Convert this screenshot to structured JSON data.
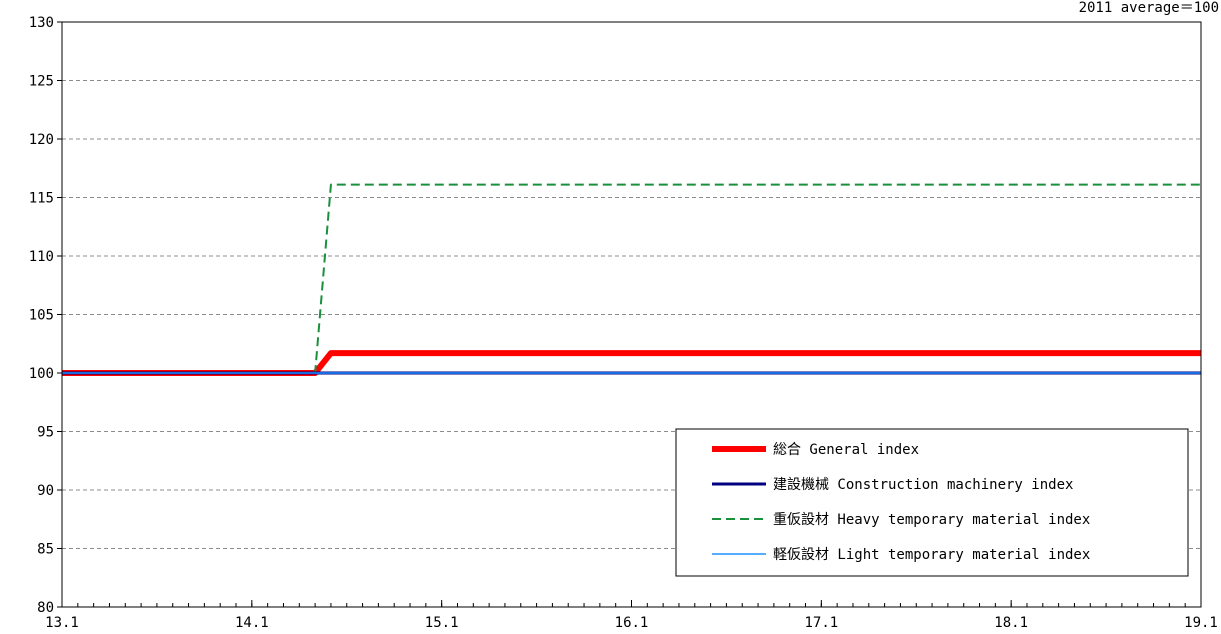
{
  "chart_data": {
    "type": "line",
    "title": "",
    "xlabel": "",
    "ylabel": "",
    "note": "2011 average＝100",
    "ylim": [
      80,
      130
    ],
    "yticks": [
      "80",
      "85",
      "90",
      "95",
      "100",
      "105",
      "110",
      "115",
      "120",
      "125",
      "130"
    ],
    "xlim": [
      0,
      72
    ],
    "xticks": [
      {
        "x": 0,
        "label": "13.1"
      },
      {
        "x": 12,
        "label": "14.1"
      },
      {
        "x": 24,
        "label": "15.1"
      },
      {
        "x": 36,
        "label": "16.1"
      },
      {
        "x": 48,
        "label": "17.1"
      },
      {
        "x": 60,
        "label": "18.1"
      },
      {
        "x": 72,
        "label": "19.1"
      }
    ],
    "grid": "horizontal-dashed",
    "legend_position": "bottom-right",
    "series": [
      {
        "name": "総合 General index",
        "color": "#ff0000",
        "dash": "solid",
        "points": [
          [
            0,
            100.0
          ],
          [
            16,
            100.0
          ],
          [
            17,
            101.7
          ],
          [
            72,
            101.7
          ]
        ]
      },
      {
        "name": "建設機械 Construction machinery index",
        "color": "#000080",
        "dash": "solid",
        "points": [
          [
            0,
            100.0
          ],
          [
            72,
            100.0
          ]
        ]
      },
      {
        "name": "重仮設材 Heavy temporary material index",
        "color": "#1a8f3c",
        "dash": "dashed",
        "points": [
          [
            0,
            100.0
          ],
          [
            16,
            100.0
          ],
          [
            17,
            116.1
          ],
          [
            72,
            116.1
          ]
        ]
      },
      {
        "name": "軽仮設材 Light temporary material index",
        "color": "#1e90ff",
        "dash": "solid",
        "points": [
          [
            0,
            100.0
          ],
          [
            72,
            100.0
          ]
        ]
      }
    ]
  }
}
